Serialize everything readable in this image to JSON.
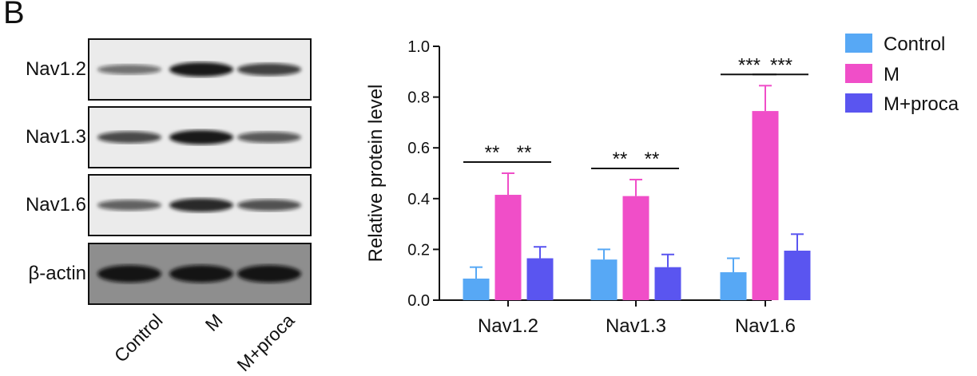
{
  "figure": {
    "panel_label": "B"
  },
  "blot": {
    "rows": [
      {
        "label": "Nav1.2",
        "band_intensity": [
          0.45,
          1.0,
          0.75
        ]
      },
      {
        "label": "Nav1.3",
        "band_intensity": [
          0.7,
          1.0,
          0.6
        ]
      },
      {
        "label": "Nav1.6",
        "band_intensity": [
          0.55,
          0.9,
          0.65
        ]
      },
      {
        "label": "β-actin",
        "band_intensity": [
          1.0,
          1.0,
          1.0
        ]
      }
    ],
    "lanes": [
      "Control",
      "M",
      "M+proca"
    ]
  },
  "chart_data": {
    "type": "bar",
    "categories": [
      "Nav1.2",
      "Nav1.3",
      "Nav1.6"
    ],
    "series": [
      {
        "name": "Control",
        "color": "#57a8f5",
        "values": [
          0.085,
          0.16,
          0.11
        ],
        "errors": [
          0.045,
          0.04,
          0.055
        ]
      },
      {
        "name": "M",
        "color": "#f04ec8",
        "values": [
          0.415,
          0.41,
          0.745
        ],
        "errors": [
          0.085,
          0.065,
          0.1
        ]
      },
      {
        "name": "M+proca",
        "color": "#5a55f0",
        "values": [
          0.165,
          0.13,
          0.195
        ],
        "errors": [
          0.045,
          0.05,
          0.065
        ]
      }
    ],
    "ylabel": "Relative protein level",
    "xlabel": "",
    "ylim": [
      0,
      1.0
    ],
    "yticks": [
      "0.0",
      "0.2",
      "0.4",
      "0.6",
      "0.8",
      "1.0"
    ],
    "legend_position": "top-right",
    "significance": [
      {
        "category": 0,
        "from": 0,
        "to": 1,
        "label": "**"
      },
      {
        "category": 0,
        "from": 1,
        "to": 2,
        "label": "**"
      },
      {
        "category": 1,
        "from": 0,
        "to": 1,
        "label": "**"
      },
      {
        "category": 1,
        "from": 1,
        "to": 2,
        "label": "**"
      },
      {
        "category": 2,
        "from": 0,
        "to": 1,
        "label": "***"
      },
      {
        "category": 2,
        "from": 1,
        "to": 2,
        "label": "***"
      }
    ]
  }
}
